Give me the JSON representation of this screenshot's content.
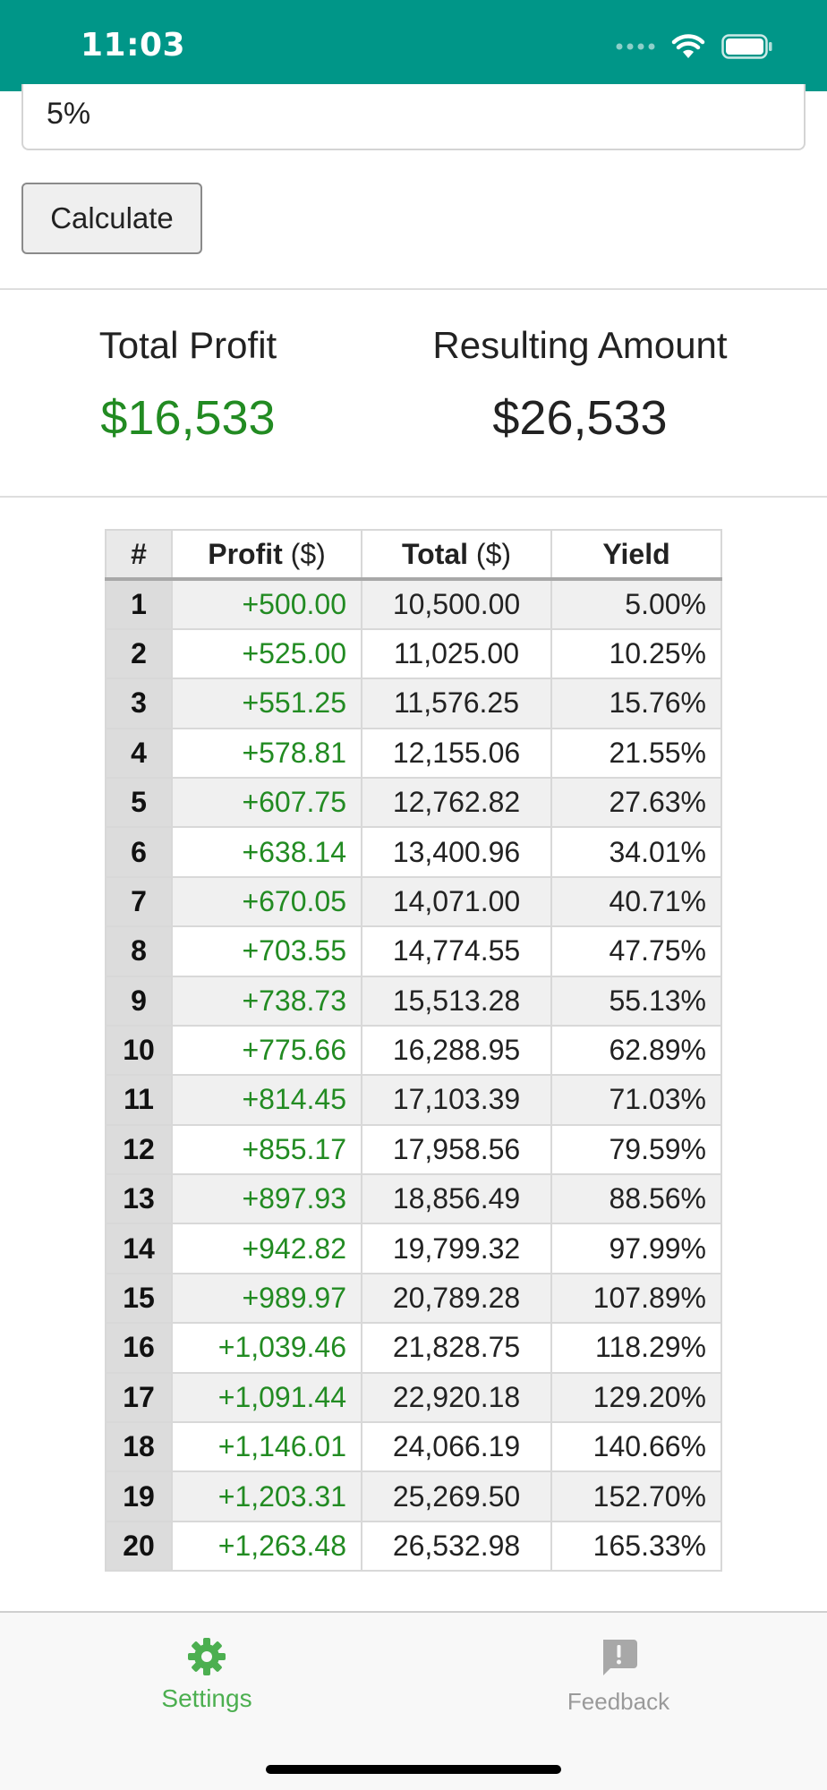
{
  "status_bar": {
    "time": "11:03",
    "icons": [
      "signal-icon",
      "wifi-icon",
      "battery-icon"
    ],
    "color": "#009688"
  },
  "form": {
    "rate_value": "5%",
    "calculate_label": "Calculate"
  },
  "summary": {
    "profit_label": "Total Profit",
    "profit_value": "$16,533",
    "amount_label": "Resulting Amount",
    "amount_value": "$26,533",
    "profit_color": "#228b22"
  },
  "table": {
    "headers": {
      "number": "#",
      "profit": "Profit",
      "profit_unit": "($)",
      "total": "Total",
      "total_unit": "($)",
      "yield": "Yield"
    },
    "rows": [
      {
        "n": "1",
        "profit": "+500.00",
        "total": "10,500.00",
        "yield": "5.00%"
      },
      {
        "n": "2",
        "profit": "+525.00",
        "total": "11,025.00",
        "yield": "10.25%"
      },
      {
        "n": "3",
        "profit": "+551.25",
        "total": "11,576.25",
        "yield": "15.76%"
      },
      {
        "n": "4",
        "profit": "+578.81",
        "total": "12,155.06",
        "yield": "21.55%"
      },
      {
        "n": "5",
        "profit": "+607.75",
        "total": "12,762.82",
        "yield": "27.63%"
      },
      {
        "n": "6",
        "profit": "+638.14",
        "total": "13,400.96",
        "yield": "34.01%"
      },
      {
        "n": "7",
        "profit": "+670.05",
        "total": "14,071.00",
        "yield": "40.71%"
      },
      {
        "n": "8",
        "profit": "+703.55",
        "total": "14,774.55",
        "yield": "47.75%"
      },
      {
        "n": "9",
        "profit": "+738.73",
        "total": "15,513.28",
        "yield": "55.13%"
      },
      {
        "n": "10",
        "profit": "+775.66",
        "total": "16,288.95",
        "yield": "62.89%"
      },
      {
        "n": "11",
        "profit": "+814.45",
        "total": "17,103.39",
        "yield": "71.03%"
      },
      {
        "n": "12",
        "profit": "+855.17",
        "total": "17,958.56",
        "yield": "79.59%"
      },
      {
        "n": "13",
        "profit": "+897.93",
        "total": "18,856.49",
        "yield": "88.56%"
      },
      {
        "n": "14",
        "profit": "+942.82",
        "total": "19,799.32",
        "yield": "97.99%"
      },
      {
        "n": "15",
        "profit": "+989.97",
        "total": "20,789.28",
        "yield": "107.89%"
      },
      {
        "n": "16",
        "profit": "+1,039.46",
        "total": "21,828.75",
        "yield": "118.29%"
      },
      {
        "n": "17",
        "profit": "+1,091.44",
        "total": "22,920.18",
        "yield": "129.20%"
      },
      {
        "n": "18",
        "profit": "+1,146.01",
        "total": "24,066.19",
        "yield": "140.66%"
      },
      {
        "n": "19",
        "profit": "+1,203.31",
        "total": "25,269.50",
        "yield": "152.70%"
      },
      {
        "n": "20",
        "profit": "+1,263.48",
        "total": "26,532.98",
        "yield": "165.33%"
      }
    ]
  },
  "tab_bar": {
    "settings_label": "Settings",
    "settings_icon": "gear-icon",
    "feedback_label": "Feedback",
    "feedback_icon": "feedback-icon",
    "active_color": "#4caf50",
    "inactive_color": "#9a9a9a"
  }
}
